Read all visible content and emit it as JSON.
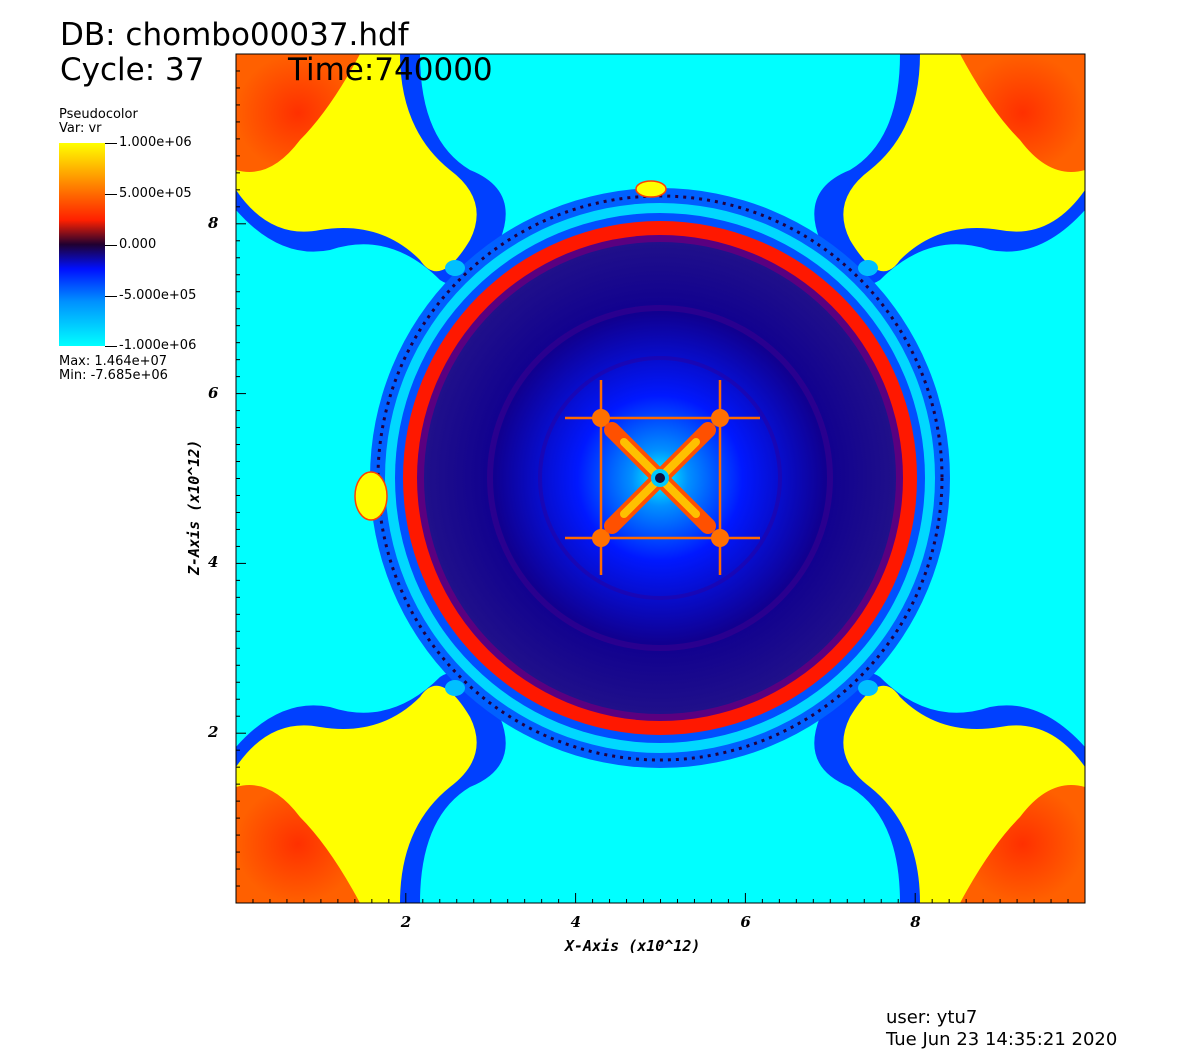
{
  "header": {
    "db": "DB: chombo00037.hdf",
    "cycle": "Cycle: 37",
    "time": "Time:740000"
  },
  "legend": {
    "title": "Pseudocolor",
    "var": "Var: vr",
    "labels": [
      "1.000e+06",
      "5.000e+05",
      "0.000",
      "-5.000e+05",
      "-1.000e+06"
    ],
    "max": "Max:  1.464e+07",
    "min": "Min: -7.685e+06",
    "colors": [
      "#ffff00",
      "#ff2000",
      "#200030",
      "#0010ff",
      "#00ffff"
    ]
  },
  "footer": {
    "user": "user: ytu7",
    "date": "Tue Jun 23 14:35:21 2020"
  },
  "chart_data": {
    "type": "heatmap",
    "variable": "vr",
    "xlabel": "X-Axis (x10^12)",
    "ylabel": "Z-Axis (x10^12)",
    "xlim": [
      0,
      10
    ],
    "ylim": [
      0,
      10
    ],
    "x_ticks": [
      2,
      4,
      6,
      8
    ],
    "y_ticks": [
      2,
      4,
      6,
      8
    ],
    "color_range": [
      -1000000,
      1000000
    ],
    "features": {
      "shell_center": [
        5,
        5
      ],
      "shell_radius": 3.0,
      "inner_jets": "diagonal",
      "corner_lobes": [
        "top-left",
        "top-right",
        "bottom-left",
        "bottom-right"
      ]
    }
  }
}
